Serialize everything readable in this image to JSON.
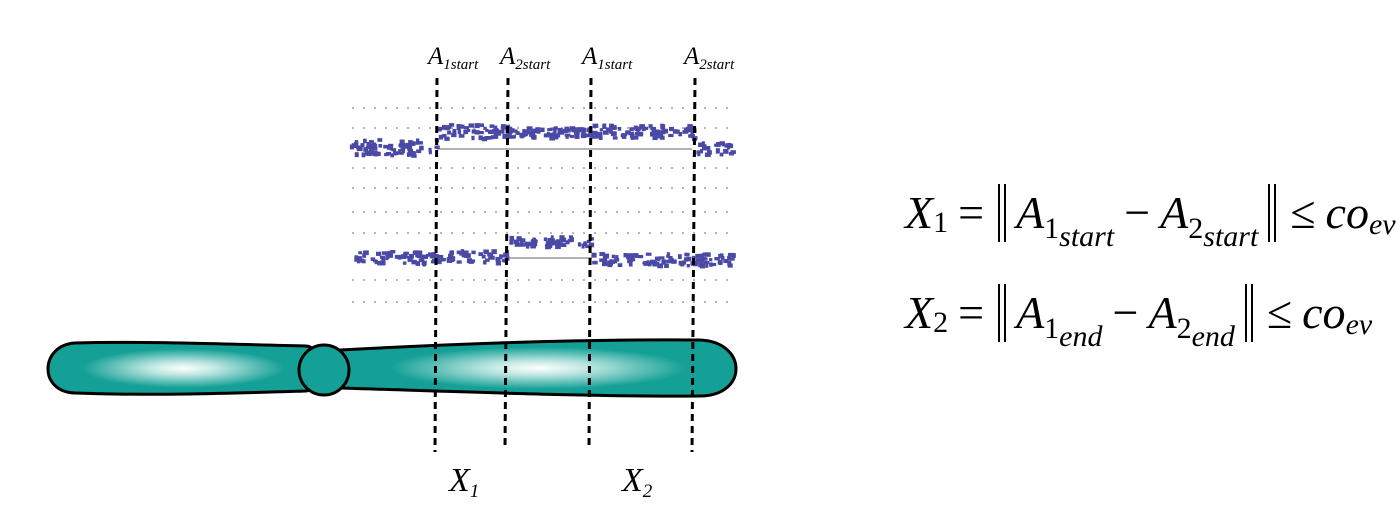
{
  "top_labels": [
    {
      "base": "A",
      "sub": "1start"
    },
    {
      "base": "A",
      "sub": "2start"
    },
    {
      "base": "A",
      "sub": "1start"
    },
    {
      "base": "A",
      "sub": "2start"
    }
  ],
  "bottom_labels": [
    {
      "base": "X",
      "sub": "1"
    },
    {
      "base": "X",
      "sub": "2"
    }
  ],
  "equations": [
    {
      "lhs": "X",
      "lhs_sub": "1",
      "eq": "=",
      "a": "A",
      "a_sub": "1",
      "a_subsub": "start",
      "minus": "−",
      "b": "A",
      "b_sub": "2",
      "b_subsub": "start",
      "le": "≤",
      "rhs": "co",
      "rhs_sub": "ev"
    },
    {
      "lhs": "X",
      "lhs_sub": "2",
      "eq": "=",
      "a": "A",
      "a_sub": "1",
      "a_subsub": "end",
      "minus": "−",
      "b": "A",
      "b_sub": "2",
      "b_subsub": "end",
      "le": "≤",
      "rhs": "co",
      "rhs_sub": "ev"
    }
  ],
  "colors": {
    "chromosome_fill": "#14a096",
    "chromosome_highlight": "#ffffff",
    "data_points": "#4a4aa6",
    "grid": "#8a8a8a",
    "baseline": "#9a9a9a",
    "boundary": "#000000"
  }
}
